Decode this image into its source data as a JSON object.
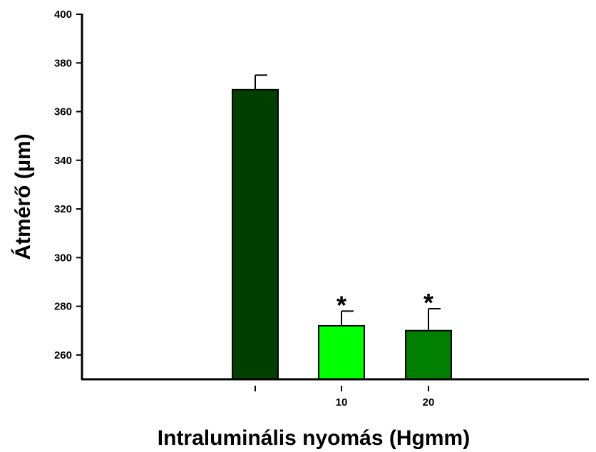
{
  "chart_data": {
    "type": "bar",
    "title": "",
    "xlabel": "Intraluminális nyomás (Hgmm)",
    "ylabel": "Átmérő (µm)",
    "ylim": [
      250,
      400
    ],
    "yticks": [
      260,
      280,
      300,
      320,
      340,
      360,
      380,
      400
    ],
    "categories": [
      "",
      "10",
      "20"
    ],
    "values": [
      369,
      272,
      270
    ],
    "errors": [
      6,
      6,
      9
    ],
    "significance": [
      "",
      "*",
      "*"
    ],
    "colors": [
      "#003f00",
      "#00ff00",
      "#007f00"
    ],
    "grid": false,
    "legend": "none"
  }
}
